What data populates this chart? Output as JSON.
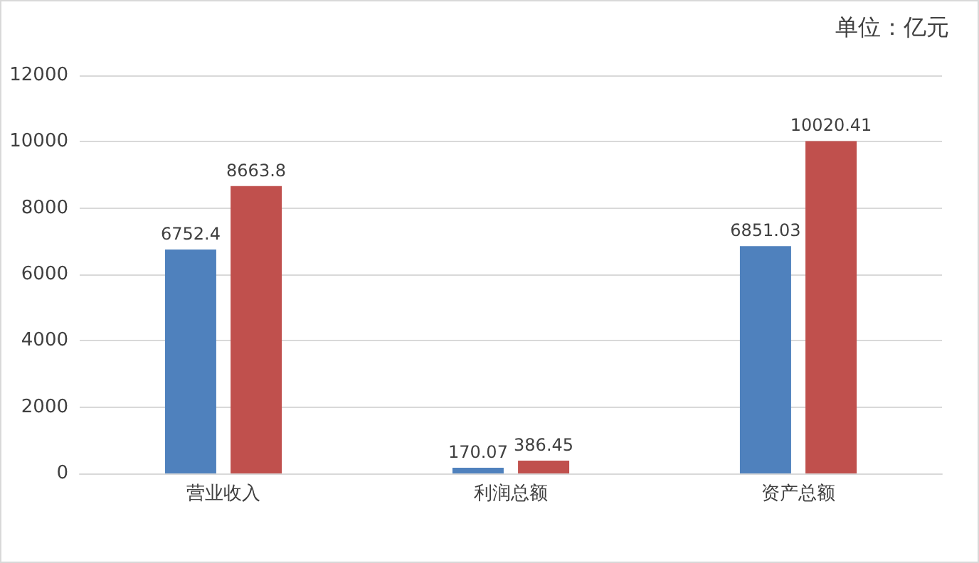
{
  "chart_data": {
    "type": "bar",
    "annotations": [
      "单位：亿元"
    ],
    "categories": [
      "营业收入",
      "利润总额",
      "资产总额"
    ],
    "series": [
      {
        "color": "#4f81bd",
        "values": [
          6752.4,
          170.07,
          6851.03
        ]
      },
      {
        "color": "#c0504d",
        "values": [
          8663.8,
          386.45,
          10020.41
        ]
      }
    ],
    "ylim": [
      0,
      12000
    ],
    "yticks": [
      0,
      2000,
      4000,
      6000,
      8000,
      10000,
      12000
    ],
    "grid": "y",
    "data_labels": true
  }
}
